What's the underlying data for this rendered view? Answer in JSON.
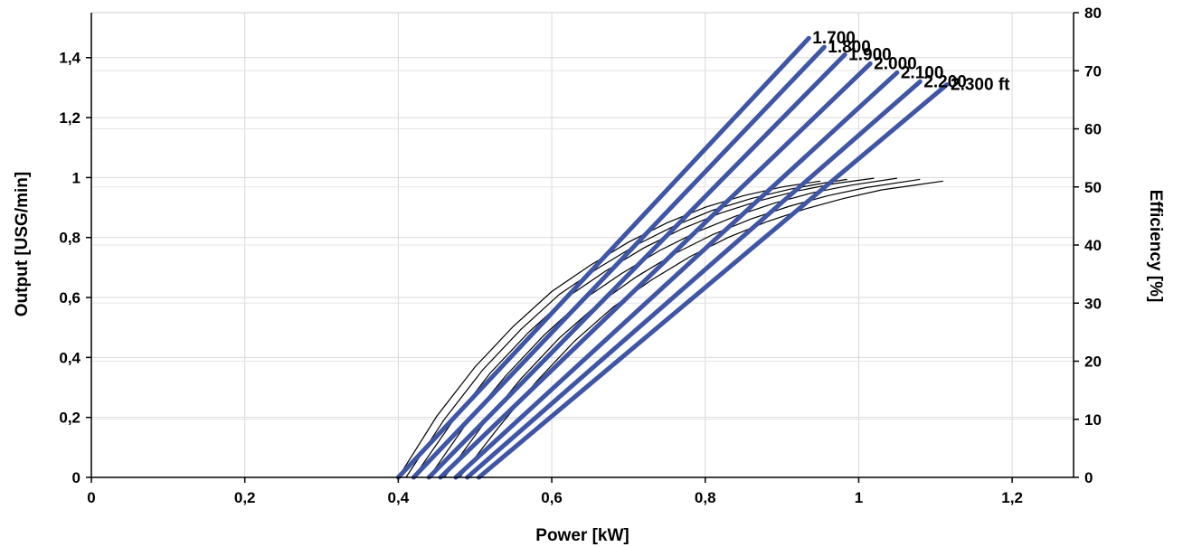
{
  "chart_data": {
    "type": "line",
    "xlabel": "Power [kW]",
    "ylabel": "Output [USG/min]",
    "y2label": "Efficiency [%]",
    "xlim": [
      0,
      1.28
    ],
    "ylim": [
      0,
      1.55
    ],
    "y2lim": [
      0,
      80
    ],
    "x_ticks": [
      0,
      0.2,
      0.4,
      0.6,
      0.8,
      1.0,
      1.2
    ],
    "x_tick_labels": [
      "0",
      "0,2",
      "0,4",
      "0,6",
      "0,8",
      "1",
      "1,2"
    ],
    "y_ticks": [
      0,
      0.2,
      0.4,
      0.6,
      0.8,
      1.0,
      1.2,
      1.4
    ],
    "y_tick_labels": [
      "0",
      "0,2",
      "0,4",
      "0,6",
      "0,8",
      "1",
      "1,2",
      "1,4"
    ],
    "y2_ticks": [
      0,
      10,
      20,
      30,
      40,
      50,
      60,
      70,
      80
    ],
    "y2_tick_labels": [
      "0",
      "10",
      "20",
      "30",
      "40",
      "50",
      "60",
      "70",
      "80"
    ],
    "grid": true,
    "colors": {
      "output": "#3f55a5",
      "efficiency": "#000000",
      "grid": "#d9d9d9"
    },
    "output_series": [
      {
        "name": "1.700",
        "x": [
          0.4,
          0.935
        ],
        "y": [
          0.0,
          1.465
        ]
      },
      {
        "name": "1.800",
        "x": [
          0.42,
          0.955
        ],
        "y": [
          0.0,
          1.435
        ]
      },
      {
        "name": "1.900",
        "x": [
          0.44,
          0.982
        ],
        "y": [
          0.0,
          1.41
        ]
      },
      {
        "name": "2.000",
        "x": [
          0.455,
          1.015
        ],
        "y": [
          0.0,
          1.38
        ]
      },
      {
        "name": "2.100",
        "x": [
          0.475,
          1.05
        ],
        "y": [
          0.0,
          1.35
        ]
      },
      {
        "name": "2.200",
        "x": [
          0.49,
          1.08
        ],
        "y": [
          0.0,
          1.32
        ]
      },
      {
        "name": "2.300 ft",
        "x": [
          0.505,
          1.115
        ],
        "y": [
          0.0,
          1.31
        ]
      }
    ],
    "efficiency_series": [
      {
        "x": [
          0.4,
          0.45,
          0.5,
          0.55,
          0.6,
          0.65,
          0.7,
          0.75,
          0.8,
          0.85,
          0.9,
          0.95
        ],
        "y": [
          0,
          10.5,
          19,
          26,
          32,
          36.5,
          40.5,
          43.8,
          46.5,
          48.5,
          50.0,
          51.0
        ]
      },
      {
        "x": [
          0.41,
          0.46,
          0.51,
          0.56,
          0.61,
          0.66,
          0.71,
          0.76,
          0.81,
          0.86,
          0.91,
          0.96,
          0.985
        ],
        "y": [
          0,
          10,
          18.5,
          25.5,
          31.5,
          36,
          40,
          43.3,
          46,
          48,
          49.6,
          50.8,
          51.3
        ]
      },
      {
        "x": [
          0.42,
          0.47,
          0.52,
          0.57,
          0.62,
          0.67,
          0.72,
          0.77,
          0.82,
          0.87,
          0.92,
          0.97,
          1.02
        ],
        "y": [
          0,
          9.5,
          18,
          25,
          31,
          35.5,
          39.5,
          42.8,
          45.5,
          47.6,
          49.3,
          50.6,
          51.5
        ]
      },
      {
        "x": [
          0.44,
          0.49,
          0.54,
          0.59,
          0.64,
          0.69,
          0.74,
          0.79,
          0.84,
          0.89,
          0.94,
          0.99,
          1.05
        ],
        "y": [
          0,
          9.5,
          17.5,
          24.5,
          30.5,
          35,
          39,
          42.3,
          45,
          47.2,
          49,
          50.3,
          51.5
        ]
      },
      {
        "x": [
          0.46,
          0.51,
          0.56,
          0.61,
          0.66,
          0.71,
          0.76,
          0.81,
          0.86,
          0.91,
          0.96,
          1.01,
          1.08
        ],
        "y": [
          0,
          9,
          17,
          24,
          29.8,
          34.5,
          38.5,
          41.8,
          44.5,
          46.7,
          48.5,
          49.9,
          51.3
        ]
      },
      {
        "x": [
          0.48,
          0.53,
          0.58,
          0.63,
          0.68,
          0.73,
          0.78,
          0.83,
          0.88,
          0.93,
          0.98,
          1.03,
          1.11
        ],
        "y": [
          0,
          8.5,
          16.5,
          23.5,
          29.3,
          34,
          38,
          41.3,
          44,
          46.2,
          48,
          49.5,
          51
        ]
      }
    ]
  }
}
